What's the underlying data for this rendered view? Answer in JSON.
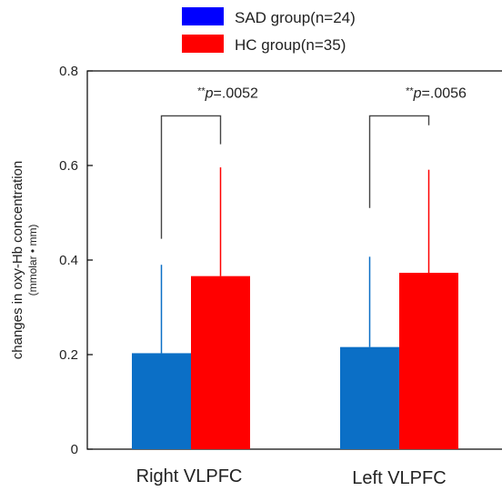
{
  "chart_data": {
    "type": "bar",
    "categories": [
      "Right VLPFC",
      "Left VLPFC"
    ],
    "series": [
      {
        "name": "SAD group(n=24)",
        "color": "#0b6fc6",
        "legend_color": "#0000ff",
        "values": [
          0.203,
          0.216
        ],
        "error_upper": [
          0.39,
          0.407
        ]
      },
      {
        "name": "HC group(n=35)",
        "color": "#ff0000",
        "legend_color": "#ff0000",
        "values": [
          0.366,
          0.373
        ],
        "error_upper": [
          0.596,
          0.591
        ]
      }
    ],
    "ylabel": "changes in oxy-Hb concentration",
    "ylabel_unit": "(mmolar • mm)",
    "ylim": [
      0,
      0.8
    ],
    "yticks": [
      "0",
      "0.2",
      "0.4",
      "0.6",
      "0.8"
    ],
    "grid": false,
    "legend_position": "top",
    "annotations": [
      {
        "category_index": 0,
        "stars": "**",
        "p_label": "p",
        "p_value": "=.0052",
        "bracket_left_y": 0.445,
        "bracket_right_y": 0.645,
        "bracket_top_y": 0.705
      },
      {
        "category_index": 1,
        "stars": "**",
        "p_label": "p",
        "p_value": "=.0056",
        "bracket_left_y": 0.51,
        "bracket_right_y": 0.685,
        "bracket_top_y": 0.705
      }
    ]
  }
}
